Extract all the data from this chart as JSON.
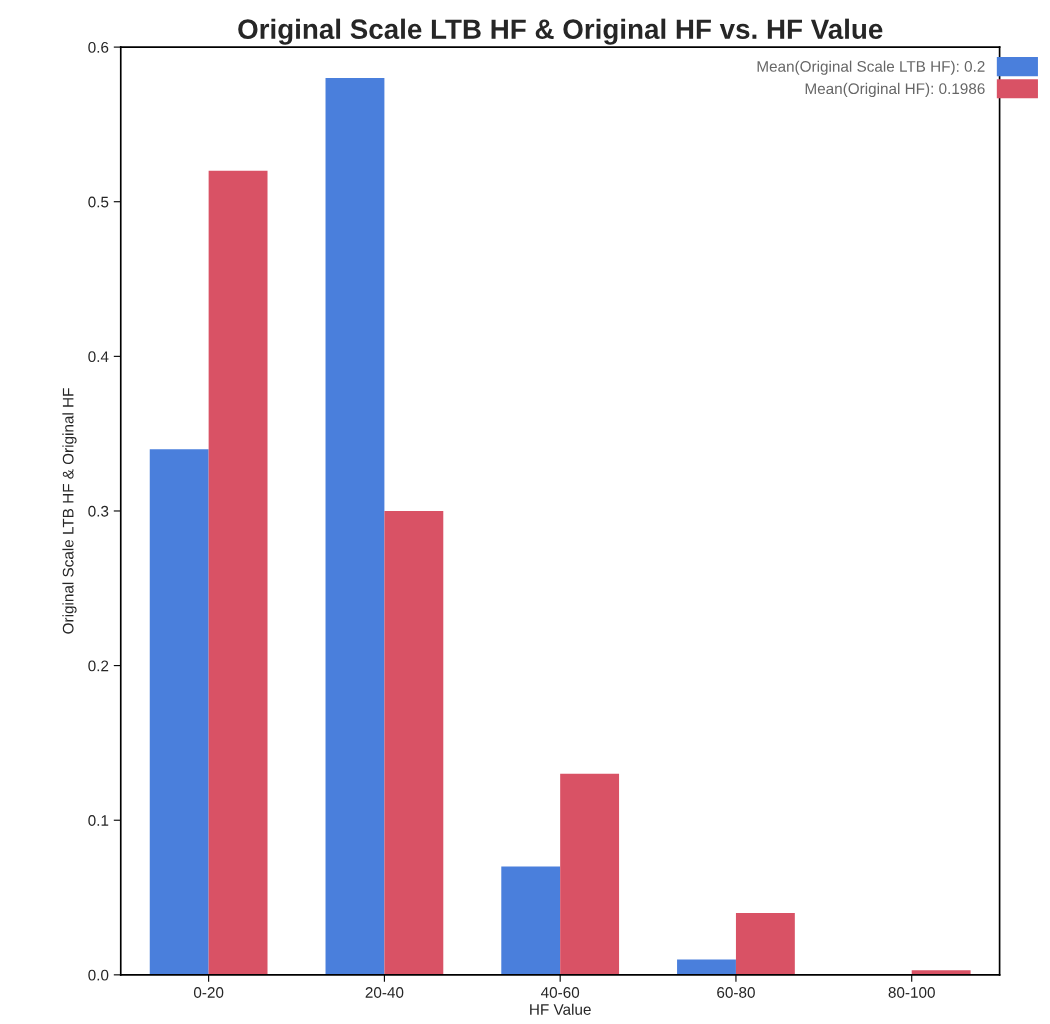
{
  "chart_data": {
    "type": "bar",
    "title": "Original Scale LTB HF & Original HF vs. HF Value",
    "xlabel": "HF Value",
    "ylabel": "Original Scale LTB HF & Original HF",
    "categories": [
      "0-20",
      "20-40",
      "40-60",
      "60-80",
      "80-100"
    ],
    "series": [
      {
        "name": "Mean(Original Scale LTB HF): 0.2",
        "color": "#4a7fdc",
        "values": [
          0.34,
          0.58,
          0.07,
          0.01,
          0
        ]
      },
      {
        "name": "Mean(Original HF): 0.1986",
        "color": "#d95265",
        "values": [
          0.52,
          0.3,
          0.13,
          0.04,
          0.003
        ]
      }
    ],
    "ylim": [
      0,
      0.6
    ],
    "yticks": [
      {
        "value": 0,
        "label": "0.0"
      },
      0.1,
      0.2,
      0.3,
      0.4,
      0.5,
      0.6
    ],
    "grid": false,
    "legend": "top right"
  }
}
